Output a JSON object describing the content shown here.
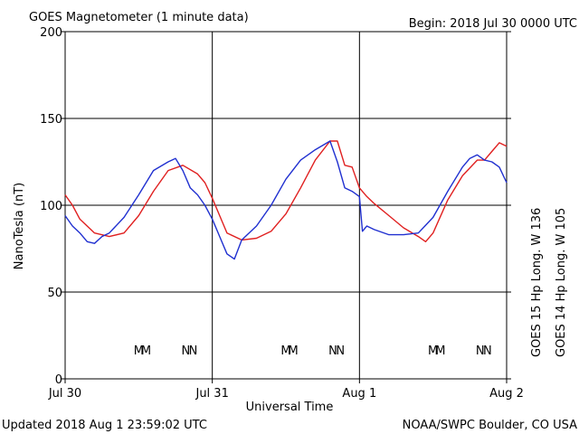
{
  "header": {
    "title": "GOES Magnetometer (1 minute data)",
    "begin": "Begin:  2018 Jul 30 0000 UTC"
  },
  "footer": {
    "updated": "Updated 2018 Aug  1 23:59:02 UTC",
    "credit": "NOAA/SWPC Boulder, CO USA"
  },
  "chart_data": {
    "type": "line",
    "xlabel": "Universal Time",
    "ylabel": "NanoTesla (nT)",
    "x_units": "days since 2018 Jul 30 0000 UTC",
    "xlim": [
      0,
      3
    ],
    "ylim": [
      0,
      200
    ],
    "grid": true,
    "x_ticks": [
      {
        "value": 0,
        "label": "Jul 30"
      },
      {
        "value": 1,
        "label": "Jul 31"
      },
      {
        "value": 2,
        "label": "Aug 1"
      },
      {
        "value": 3,
        "label": "Aug 2"
      }
    ],
    "y_ticks": [
      0,
      50,
      100,
      150,
      200
    ],
    "series": [
      {
        "name": "GOES 15 Hp  Long. W 136",
        "color": "#e02020",
        "x": [
          0,
          0.05,
          0.1,
          0.2,
          0.3,
          0.4,
          0.5,
          0.6,
          0.7,
          0.8,
          0.9,
          0.95,
          1.0,
          1.05,
          1.1,
          1.2,
          1.3,
          1.4,
          1.5,
          1.6,
          1.7,
          1.8,
          1.85,
          1.9,
          1.95,
          2.0,
          2.05,
          2.1,
          2.2,
          2.3,
          2.4,
          2.45,
          2.5,
          2.6,
          2.7,
          2.8,
          2.85,
          2.9,
          2.95,
          3.0
        ],
        "y": [
          106,
          100,
          92,
          84,
          82,
          84,
          94,
          108,
          120,
          123,
          118,
          113,
          104,
          94,
          84,
          80,
          81,
          85,
          95,
          110,
          126,
          137,
          137,
          123,
          122,
          110,
          105,
          101,
          94,
          87,
          82,
          79,
          84,
          103,
          117,
          126,
          126,
          131,
          136,
          134
        ]
      },
      {
        "name": "GOES 14 Hp  Long. W 105",
        "color": "#2030d0",
        "x": [
          0,
          0.05,
          0.1,
          0.15,
          0.2,
          0.25,
          0.3,
          0.4,
          0.5,
          0.6,
          0.7,
          0.75,
          0.8,
          0.85,
          0.9,
          0.95,
          1.0,
          1.05,
          1.1,
          1.15,
          1.2,
          1.3,
          1.4,
          1.5,
          1.6,
          1.7,
          1.8,
          1.85,
          1.9,
          1.95,
          2.0,
          2.02,
          2.05,
          2.1,
          2.2,
          2.3,
          2.4,
          2.5,
          2.6,
          2.7,
          2.75,
          2.8,
          2.85,
          2.9,
          2.95,
          3.0
        ],
        "y": [
          94,
          88,
          84,
          79,
          78,
          82,
          84,
          93,
          106,
          120,
          125,
          127,
          120,
          110,
          106,
          100,
          92,
          82,
          72,
          69,
          80,
          88,
          100,
          115,
          126,
          132,
          137,
          125,
          110,
          108,
          105,
          85,
          88,
          86,
          83,
          83,
          84,
          93,
          108,
          122,
          127,
          129,
          126,
          125,
          122,
          113
        ]
      }
    ],
    "markers": [
      {
        "x": 0.5,
        "label": "M",
        "color": "#2030d0"
      },
      {
        "x": 0.55,
        "label": "M",
        "color": "#e02020"
      },
      {
        "x": 1.5,
        "label": "M",
        "color": "#2030d0"
      },
      {
        "x": 1.55,
        "label": "M",
        "color": "#e02020"
      },
      {
        "x": 2.5,
        "label": "M",
        "color": "#2030d0"
      },
      {
        "x": 2.55,
        "label": "M",
        "color": "#e02020"
      },
      {
        "x": 0.82,
        "label": "N",
        "color": "#2030d0"
      },
      {
        "x": 0.87,
        "label": "N",
        "color": "#e02020"
      },
      {
        "x": 1.82,
        "label": "N",
        "color": "#2030d0"
      },
      {
        "x": 1.87,
        "label": "N",
        "color": "#e02020"
      },
      {
        "x": 2.82,
        "label": "N",
        "color": "#2030d0"
      },
      {
        "x": 2.87,
        "label": "N",
        "color": "#e02020"
      }
    ]
  }
}
